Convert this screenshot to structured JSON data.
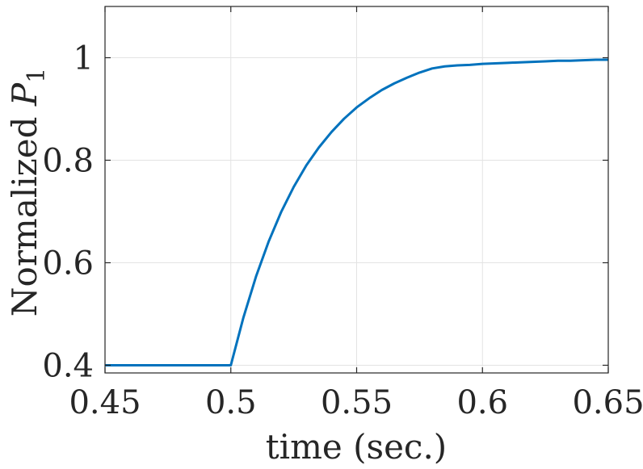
{
  "chart_data": {
    "type": "line",
    "title": "",
    "xlabel": "time (sec.)",
    "ylabel": {
      "text": "Normalized ",
      "symbol": "P",
      "subscript": "1"
    },
    "xlim": [
      0.45,
      0.65
    ],
    "ylim": [
      0.385,
      1.1
    ],
    "xticks": [
      0.45,
      0.5,
      0.55,
      0.6,
      0.65
    ],
    "xtick_labels": [
      "0.45",
      "0.5",
      "0.55",
      "0.6",
      "0.65"
    ],
    "yticks": [
      0.4,
      0.6,
      0.8,
      1.0
    ],
    "ytick_labels": [
      "0.4",
      "0.6",
      "0.8",
      "1"
    ],
    "grid": true,
    "series": [
      {
        "color": "#0072BD",
        "x": [
          0.45,
          0.47,
          0.49,
          0.5,
          0.505,
          0.51,
          0.515,
          0.52,
          0.525,
          0.53,
          0.535,
          0.54,
          0.545,
          0.55,
          0.555,
          0.56,
          0.565,
          0.57,
          0.575,
          0.58,
          0.585,
          0.59,
          0.595,
          0.6,
          0.605,
          0.61,
          0.615,
          0.62,
          0.625,
          0.63,
          0.635,
          0.64,
          0.645,
          0.65
        ],
        "y": [
          0.4,
          0.4,
          0.4,
          0.4,
          0.493,
          0.573,
          0.641,
          0.699,
          0.748,
          0.79,
          0.825,
          0.855,
          0.881,
          0.903,
          0.921,
          0.937,
          0.95,
          0.961,
          0.971,
          0.979,
          0.983,
          0.985,
          0.986,
          0.988,
          0.989,
          0.99,
          0.991,
          0.992,
          0.993,
          0.994,
          0.994,
          0.995,
          0.996,
          0.996
        ]
      }
    ]
  }
}
